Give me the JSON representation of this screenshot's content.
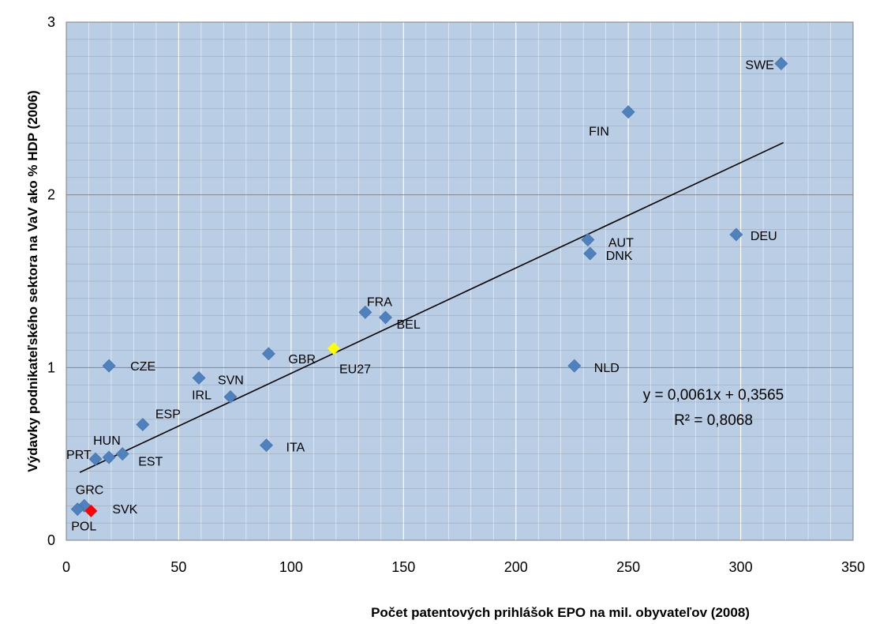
{
  "chart_data": {
    "type": "scatter",
    "title": "",
    "xlabel": "Počet patentových prihlášok EPO na mil. obyvateľov (2008)",
    "ylabel": "Výdavky podnikateľského sektora na VaV ako % HDP (2006)",
    "xlim": [
      0,
      350
    ],
    "ylim": [
      0,
      3
    ],
    "x_ticks": [
      "0",
      "50",
      "100",
      "150",
      "200",
      "250",
      "300",
      "350"
    ],
    "y_ticks": [
      "0",
      "1",
      "2",
      "3"
    ],
    "x_tick_values": [
      0,
      50,
      100,
      150,
      200,
      250,
      300,
      350
    ],
    "y_tick_values": [
      0,
      1,
      2,
      3
    ],
    "grid": true,
    "legend": "none",
    "colors": {
      "plot_bg": "#b9cde5",
      "grid": "#ffffff",
      "border": "#808080",
      "point": "#4f81bd",
      "highlight_svk": "#ff0000",
      "highlight_eu27": "#ffff00",
      "trendline": "#000000"
    },
    "points": [
      {
        "label": "SWE",
        "x": 318,
        "y": 2.76
      },
      {
        "label": "FIN",
        "x": 250,
        "y": 2.48
      },
      {
        "label": "DEU",
        "x": 298,
        "y": 1.77
      },
      {
        "label": "AUT",
        "x": 232,
        "y": 1.74
      },
      {
        "label": "DNK",
        "x": 233,
        "y": 1.66
      },
      {
        "label": "FRA",
        "x": 133,
        "y": 1.32
      },
      {
        "label": "BEL",
        "x": 142,
        "y": 1.29
      },
      {
        "label": "EU27",
        "x": 119,
        "y": 1.11,
        "color": "#ffff00"
      },
      {
        "label": "GBR",
        "x": 90,
        "y": 1.08
      },
      {
        "label": "NLD",
        "x": 226,
        "y": 1.01
      },
      {
        "label": "CZE",
        "x": 19,
        "y": 1.01
      },
      {
        "label": "IRL",
        "x": 59,
        "y": 0.94
      },
      {
        "label": "SVN",
        "x": 73,
        "y": 0.83
      },
      {
        "label": "ESP",
        "x": 34,
        "y": 0.67
      },
      {
        "label": "ITA",
        "x": 89,
        "y": 0.55
      },
      {
        "label": "EST",
        "x": 25,
        "y": 0.5
      },
      {
        "label": "HUN",
        "x": 19,
        "y": 0.48
      },
      {
        "label": "PRT",
        "x": 13,
        "y": 0.47
      },
      {
        "label": "GRC",
        "x": 8,
        "y": 0.2
      },
      {
        "label": "POL",
        "x": 5,
        "y": 0.18
      },
      {
        "label": "SVK",
        "x": 11,
        "y": 0.17,
        "color": "#ff0000"
      }
    ],
    "trendline": {
      "slope": 0.0061,
      "intercept": 0.3565,
      "x_range": [
        6,
        319
      ],
      "equation": "y = 0,0061x + 0,3565",
      "r2": "R² = 0,8068"
    }
  }
}
